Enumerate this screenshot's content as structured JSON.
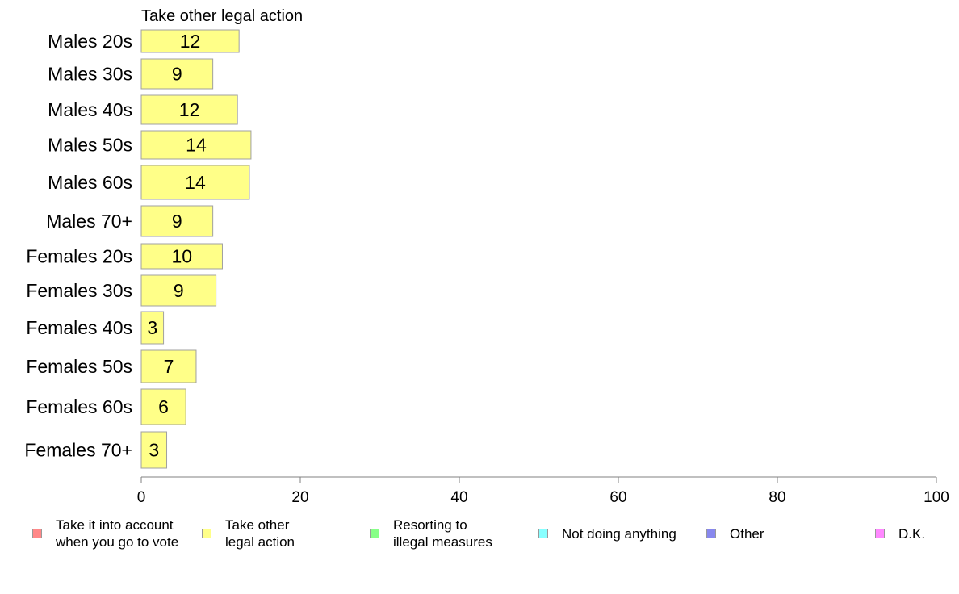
{
  "chart_data": {
    "type": "bar",
    "orientation": "horizontal",
    "title": "Take other legal action",
    "categories": [
      "Males 20s",
      "Males 30s",
      "Males 40s",
      "Males 50s",
      "Males 60s",
      "Males 70+",
      "Females 20s",
      "Females 30s",
      "Females 40s",
      "Females 50s",
      "Females 60s",
      "Females 70+"
    ],
    "series": [
      {
        "name": "Take other legal action",
        "color": "#ffff88",
        "values": [
          12.3,
          9.0,
          12.1,
          13.8,
          13.6,
          9.0,
          10.2,
          9.4,
          2.8,
          6.9,
          5.6,
          3.2
        ],
        "value_labels": [
          "12",
          "9",
          "12",
          "14",
          "14",
          "9",
          "10",
          "9",
          "3",
          "7",
          "6",
          "3"
        ]
      }
    ],
    "xlim": [
      0,
      100
    ],
    "xticks": [
      "0",
      "20",
      "40",
      "60",
      "80",
      "100"
    ],
    "grid": false,
    "legend_position": "bottom"
  },
  "legend": [
    {
      "label": "Take it into account\nwhen you go to vote",
      "color": "#ff8888"
    },
    {
      "label": "Take other\nlegal action",
      "color": "#ffff88"
    },
    {
      "label": "Resorting to\nillegal measures",
      "color": "#88ff88"
    },
    {
      "label": "Not doing anything",
      "color": "#88ffff"
    },
    {
      "label": "Other",
      "color": "#8888ee"
    },
    {
      "label": "D.K.",
      "color": "#ff88ff"
    }
  ]
}
